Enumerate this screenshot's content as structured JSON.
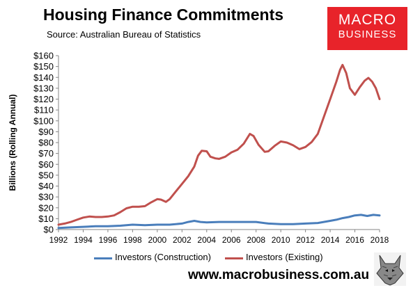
{
  "header": {
    "title": "Housing Finance Commitments",
    "subtitle": "Source: Australian Bureau of Statistics"
  },
  "logo": {
    "line1": "MACRO",
    "line2": "BUSINESS",
    "background": "#e8232a"
  },
  "footer": {
    "url": "www.macrobusiness.com.au",
    "mascot_icon": "wolf-head-icon"
  },
  "chart_data": {
    "type": "line",
    "ylabel": "Billions (Rolling Annual)",
    "xlabel": "",
    "xlim": [
      1992,
      2018
    ],
    "ylim": [
      0,
      160
    ],
    "x_ticks": [
      "1992",
      "1994",
      "1996",
      "1998",
      "2000",
      "2002",
      "2004",
      "2006",
      "2008",
      "2010",
      "2012",
      "2014",
      "2016",
      "2018"
    ],
    "y_ticks": [
      "$0",
      "$10",
      "$20",
      "$30",
      "$40",
      "$50",
      "$60",
      "$70",
      "$80",
      "$90",
      "$100",
      "$110",
      "$120",
      "$130",
      "$140",
      "$150",
      "$160"
    ],
    "grid": false,
    "legend_position": "bottom",
    "series": [
      {
        "name": "Investors (Construction)",
        "color": "#4a7ebb",
        "points": [
          [
            1992.0,
            1.5
          ],
          [
            1993.0,
            2.0
          ],
          [
            1994.0,
            2.5
          ],
          [
            1995.0,
            3.0
          ],
          [
            1996.0,
            3.0
          ],
          [
            1997.0,
            3.5
          ],
          [
            1998.0,
            4.5
          ],
          [
            1999.0,
            4.0
          ],
          [
            2000.0,
            4.5
          ],
          [
            2001.0,
            4.5
          ],
          [
            2002.0,
            5.5
          ],
          [
            2002.5,
            7.0
          ],
          [
            2003.0,
            8.0
          ],
          [
            2003.5,
            7.0
          ],
          [
            2004.0,
            6.5
          ],
          [
            2005.0,
            7.0
          ],
          [
            2006.0,
            7.0
          ],
          [
            2007.0,
            7.0
          ],
          [
            2008.0,
            7.0
          ],
          [
            2009.0,
            5.5
          ],
          [
            2010.0,
            5.0
          ],
          [
            2011.0,
            5.0
          ],
          [
            2012.0,
            5.5
          ],
          [
            2013.0,
            6.0
          ],
          [
            2014.0,
            8.0
          ],
          [
            2014.5,
            9.0
          ],
          [
            2015.0,
            10.5
          ],
          [
            2015.5,
            11.5
          ],
          [
            2016.0,
            13.0
          ],
          [
            2016.5,
            13.5
          ],
          [
            2017.0,
            12.5
          ],
          [
            2017.5,
            13.5
          ],
          [
            2018.0,
            13.0
          ]
        ]
      },
      {
        "name": "Investors (Existing)",
        "color": "#c0504d",
        "points": [
          [
            1992.0,
            4.5
          ],
          [
            1992.5,
            5.5
          ],
          [
            1993.0,
            7.0
          ],
          [
            1993.5,
            9.0
          ],
          [
            1994.0,
            11.0
          ],
          [
            1994.5,
            12.0
          ],
          [
            1995.0,
            11.5
          ],
          [
            1995.5,
            11.5
          ],
          [
            1996.0,
            12.0
          ],
          [
            1996.5,
            13.0
          ],
          [
            1997.0,
            16.0
          ],
          [
            1997.5,
            19.5
          ],
          [
            1998.0,
            21.0
          ],
          [
            1998.5,
            21.0
          ],
          [
            1999.0,
            21.5
          ],
          [
            1999.5,
            25.0
          ],
          [
            2000.0,
            28.0
          ],
          [
            2000.3,
            27.5
          ],
          [
            2000.7,
            25.5
          ],
          [
            2001.0,
            28.0
          ],
          [
            2001.5,
            35.0
          ],
          [
            2002.0,
            42.0
          ],
          [
            2002.5,
            49.0
          ],
          [
            2003.0,
            58.0
          ],
          [
            2003.3,
            68.0
          ],
          [
            2003.6,
            72.5
          ],
          [
            2004.0,
            72.0
          ],
          [
            2004.3,
            67.0
          ],
          [
            2004.7,
            65.5
          ],
          [
            2005.0,
            65.0
          ],
          [
            2005.5,
            67.0
          ],
          [
            2006.0,
            71.0
          ],
          [
            2006.5,
            73.5
          ],
          [
            2007.0,
            79.0
          ],
          [
            2007.5,
            88.0
          ],
          [
            2007.8,
            86.0
          ],
          [
            2008.2,
            78.0
          ],
          [
            2008.7,
            71.5
          ],
          [
            2009.0,
            72.0
          ],
          [
            2009.5,
            77.0
          ],
          [
            2010.0,
            81.0
          ],
          [
            2010.5,
            80.0
          ],
          [
            2011.0,
            77.5
          ],
          [
            2011.5,
            74.0
          ],
          [
            2012.0,
            76.0
          ],
          [
            2012.5,
            80.5
          ],
          [
            2013.0,
            88.0
          ],
          [
            2013.5,
            104.0
          ],
          [
            2014.0,
            120.0
          ],
          [
            2014.5,
            136.0
          ],
          [
            2014.8,
            147.0
          ],
          [
            2015.0,
            151.5
          ],
          [
            2015.3,
            144.0
          ],
          [
            2015.6,
            130.0
          ],
          [
            2016.0,
            124.0
          ],
          [
            2016.4,
            131.0
          ],
          [
            2016.8,
            137.0
          ],
          [
            2017.1,
            139.5
          ],
          [
            2017.4,
            136.0
          ],
          [
            2017.7,
            130.0
          ],
          [
            2018.0,
            120.0
          ]
        ]
      }
    ]
  }
}
